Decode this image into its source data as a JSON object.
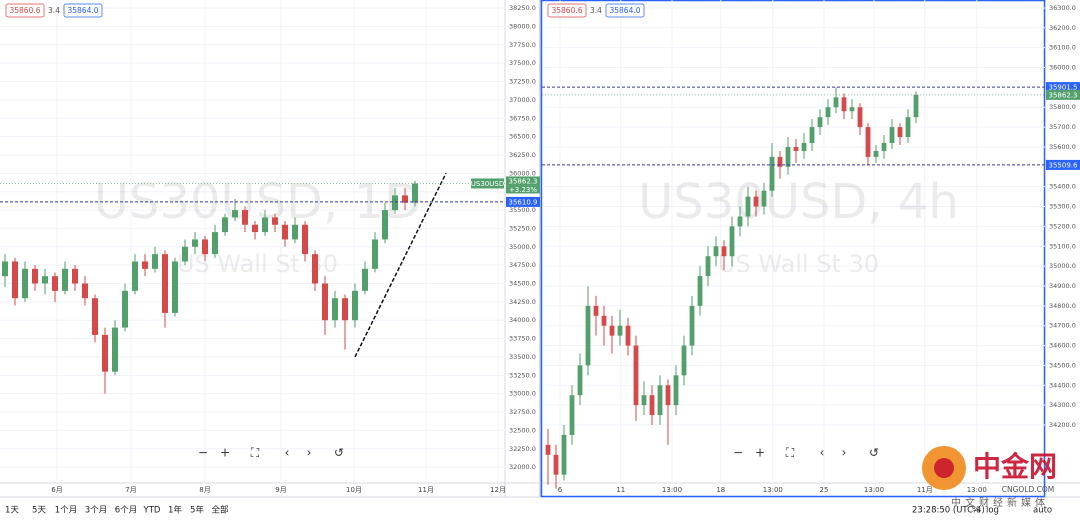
{
  "chart_data": [
    {
      "type": "candlestick",
      "title": "US30USD, 1D",
      "subtitle": "US Wall St 30",
      "header_values": [
        "35860.6",
        "3.4",
        "35864.0"
      ],
      "symbol_label": "US30USD",
      "last_price": 35862.3,
      "change_label": "+3.23%",
      "up_color": "#53a06c",
      "down_color": "#d44a4a",
      "ylim": [
        31784,
        38360
      ],
      "xlim": [
        -0.5,
        50
      ],
      "yticks": [
        {
          "value": 32000,
          "label": "32000.0"
        },
        {
          "value": 32250,
          "label": "32250.0"
        },
        {
          "value": 32500,
          "label": "32500.0"
        },
        {
          "value": 32750,
          "label": "32750.0"
        },
        {
          "value": 33000,
          "label": "33000.0"
        },
        {
          "value": 33250,
          "label": "33250.0"
        },
        {
          "value": 33500,
          "label": "33500.0"
        },
        {
          "value": 33750,
          "label": "33750.0"
        },
        {
          "value": 34000,
          "label": "34000.0"
        },
        {
          "value": 34250,
          "label": "34250.0"
        },
        {
          "value": 34500,
          "label": "34500.0"
        },
        {
          "value": 34750,
          "label": "34750.0"
        },
        {
          "value": 35000,
          "label": "35000.0"
        },
        {
          "value": 35250,
          "label": "35250.0"
        },
        {
          "value": 35500,
          "label": "35500.0"
        },
        {
          "value": 35750,
          "label": "35750.0"
        },
        {
          "value": 36000,
          "label": "36000.0"
        },
        {
          "value": 36250,
          "label": "36250.0"
        },
        {
          "value": 36500,
          "label": "36500.0"
        },
        {
          "value": 36750,
          "label": "36750.0"
        },
        {
          "value": 37000,
          "label": "37000.0"
        },
        {
          "value": 37250,
          "label": "37250.0"
        },
        {
          "value": 37500,
          "label": "37500.0"
        },
        {
          "value": 37750,
          "label": "37750.0"
        },
        {
          "value": 38000,
          "label": "38000.0"
        },
        {
          "value": 38250,
          "label": "38250.0"
        }
      ],
      "xticks": [
        {
          "value": 5.2,
          "label": "6月"
        },
        {
          "value": 12.6,
          "label": "7月"
        },
        {
          "value": 20,
          "label": "8月"
        },
        {
          "value": 27.6,
          "label": "9月"
        },
        {
          "value": 34.9,
          "label": "10月"
        },
        {
          "value": 42.1,
          "label": "11月"
        },
        {
          "value": 49.3,
          "label": "12月"
        }
      ],
      "levels": [
        {
          "value": 35610.9,
          "color": "#2962ff"
        }
      ],
      "trendline": {
        "start": [
          35,
          33500
        ],
        "end": [
          44.1,
          36000
        ]
      },
      "ohlc": [
        [
          34600,
          34900,
          34450,
          34800
        ],
        [
          34800,
          34850,
          34200,
          34300
        ],
        [
          34300,
          34800,
          34250,
          34700
        ],
        [
          34700,
          34750,
          34400,
          34500
        ],
        [
          34500,
          34700,
          34350,
          34600
        ],
        [
          34600,
          34650,
          34250,
          34400
        ],
        [
          34400,
          34800,
          34350,
          34700
        ],
        [
          34700,
          34750,
          34400,
          34500
        ],
        [
          34500,
          34600,
          34200,
          34300
        ],
        [
          34300,
          34350,
          33700,
          33800
        ],
        [
          33800,
          33900,
          33000,
          33300
        ],
        [
          33300,
          34000,
          33250,
          33900
        ],
        [
          33900,
          34500,
          33850,
          34400
        ],
        [
          34400,
          34900,
          34350,
          34800
        ],
        [
          34800,
          34900,
          34600,
          34700
        ],
        [
          34700,
          35000,
          34650,
          34900
        ],
        [
          34900,
          34950,
          33900,
          34100
        ],
        [
          34100,
          34850,
          34050,
          34800
        ],
        [
          34800,
          35100,
          34750,
          35000
        ],
        [
          35000,
          35200,
          34900,
          35100
        ],
        [
          35100,
          35150,
          34800,
          34900
        ],
        [
          34900,
          35300,
          34850,
          35200
        ],
        [
          35200,
          35450,
          35150,
          35400
        ],
        [
          35400,
          35650,
          35350,
          35500
        ],
        [
          35500,
          35550,
          35200,
          35300
        ],
        [
          35300,
          35350,
          35100,
          35200
        ],
        [
          35200,
          35500,
          35150,
          35400
        ],
        [
          35400,
          35450,
          35200,
          35300
        ],
        [
          35300,
          35350,
          35000,
          35100
        ],
        [
          35100,
          35400,
          35050,
          35300
        ],
        [
          35300,
          35350,
          34800,
          34900
        ],
        [
          34900,
          34950,
          34400,
          34500
        ],
        [
          34500,
          34600,
          33800,
          34000
        ],
        [
          34000,
          34400,
          33900,
          34300
        ],
        [
          34300,
          34350,
          33600,
          34000
        ],
        [
          34000,
          34500,
          33900,
          34400
        ],
        [
          34400,
          34800,
          34350,
          34700
        ],
        [
          34700,
          35200,
          34650,
          35100
        ],
        [
          35100,
          35600,
          35050,
          35500
        ],
        [
          35500,
          35800,
          35450,
          35700
        ],
        [
          35700,
          35800,
          35500,
          35600
        ],
        [
          35600,
          35900,
          35550,
          35862.3
        ]
      ]
    },
    {
      "type": "candlestick",
      "title": "US30USD, 4h",
      "subtitle": "US Wall St 30",
      "header_values": [
        "35860.6",
        "3.4",
        "35864.0"
      ],
      "last_price": 35862.3,
      "up_color": "#53a06c",
      "down_color": "#d44a4a",
      "ylim": [
        33908,
        36340
      ],
      "xlim": [
        -0.75,
        62.125
      ],
      "yticks": [
        {
          "value": 34200,
          "label": "34200.0"
        },
        {
          "value": 34300,
          "label": "34300.0"
        },
        {
          "value": 34400,
          "label": "34400.0"
        },
        {
          "value": 34500,
          "label": "34500.0"
        },
        {
          "value": 34600,
          "label": "34600.0"
        },
        {
          "value": 34700,
          "label": "34700.0"
        },
        {
          "value": 34800,
          "label": "34800.0"
        },
        {
          "value": 34900,
          "label": "34900.0"
        },
        {
          "value": 35000,
          "label": "35000.0"
        },
        {
          "value": 35100,
          "label": "35100.0"
        },
        {
          "value": 35200,
          "label": "35200.0"
        },
        {
          "value": 35300,
          "label": "35300.0"
        },
        {
          "value": 35400,
          "label": "35400.0"
        },
        {
          "value": 35600,
          "label": "35600.0"
        },
        {
          "value": 35700,
          "label": "35700.0"
        },
        {
          "value": 35800,
          "label": "35800.0"
        },
        {
          "value": 36000,
          "label": "36000.0"
        },
        {
          "value": 36100,
          "label": "36100.0"
        },
        {
          "value": 36200,
          "label": "36200.0"
        },
        {
          "value": 36300,
          "label": "36300.0"
        }
      ],
      "xticks": [
        {
          "value": 1.5,
          "label": "6"
        },
        {
          "value": 9.1,
          "label": "11"
        },
        {
          "value": 15.5,
          "label": "13:00"
        },
        {
          "value": 21.6,
          "label": "18"
        },
        {
          "value": 28.1,
          "label": "13:00"
        },
        {
          "value": 34.5,
          "label": "25"
        },
        {
          "value": 40.75,
          "label": "13:00"
        },
        {
          "value": 47.1,
          "label": "11月"
        },
        {
          "value": 53.6,
          "label": "13:00"
        }
      ],
      "levels": [
        {
          "value": 35901.5,
          "color": "#2962ff"
        },
        {
          "value": 35509.6,
          "color": "#2962ff"
        }
      ],
      "ohlc": [
        [
          34100,
          34180,
          33900,
          34050
        ],
        [
          34050,
          34100,
          33880,
          33950
        ],
        [
          33950,
          34200,
          33920,
          34150
        ],
        [
          34150,
          34400,
          34100,
          34350
        ],
        [
          34350,
          34560,
          34300,
          34500
        ],
        [
          34500,
          34900,
          34450,
          34800
        ],
        [
          34800,
          34850,
          34650,
          34750
        ],
        [
          34750,
          34800,
          34600,
          34700
        ],
        [
          34700,
          34750,
          34560,
          34650
        ],
        [
          34650,
          34780,
          34600,
          34700
        ],
        [
          34700,
          34740,
          34550,
          34600
        ],
        [
          34600,
          34650,
          34220,
          34300
        ],
        [
          34300,
          34420,
          34250,
          34350
        ],
        [
          34350,
          34400,
          34200,
          34250
        ],
        [
          34250,
          34450,
          34200,
          34400
        ],
        [
          34400,
          34430,
          34100,
          34300
        ],
        [
          34300,
          34500,
          34250,
          34450
        ],
        [
          34450,
          34650,
          34400,
          34600
        ],
        [
          34600,
          34850,
          34550,
          34800
        ],
        [
          34800,
          35000,
          34750,
          34950
        ],
        [
          34950,
          35100,
          34900,
          35050
        ],
        [
          35050,
          35150,
          35000,
          35100
        ],
        [
          35100,
          35130,
          34980,
          35050
        ],
        [
          35050,
          35250,
          35000,
          35200
        ],
        [
          35200,
          35300,
          35150,
          35250
        ],
        [
          35250,
          35400,
          35200,
          35350
        ],
        [
          35350,
          35380,
          35250,
          35300
        ],
        [
          35300,
          35420,
          35260,
          35380
        ],
        [
          35380,
          35620,
          35350,
          35550
        ],
        [
          35550,
          35580,
          35440,
          35500
        ],
        [
          35500,
          35650,
          35460,
          35600
        ],
        [
          35600,
          35640,
          35520,
          35580
        ],
        [
          35580,
          35670,
          35540,
          35620
        ],
        [
          35620,
          35740,
          35580,
          35700
        ],
        [
          35700,
          35790,
          35660,
          35750
        ],
        [
          35750,
          35840,
          35710,
          35800
        ],
        [
          35800,
          35901.5,
          35770,
          35850
        ],
        [
          35850,
          35870,
          35740,
          35780
        ],
        [
          35780,
          35840,
          35740,
          35800
        ],
        [
          35800,
          35820,
          35660,
          35700
        ],
        [
          35700,
          35720,
          35509.6,
          35550
        ],
        [
          35550,
          35610,
          35520,
          35580
        ],
        [
          35580,
          35660,
          35540,
          35620
        ],
        [
          35620,
          35740,
          35590,
          35700
        ],
        [
          35700,
          35720,
          35610,
          35650
        ],
        [
          35650,
          35790,
          35620,
          35750
        ],
        [
          35750,
          35880,
          35720,
          35862.3
        ]
      ]
    }
  ],
  "ui": {
    "nav_buttons": [
      "−",
      "+",
      "⛶",
      "‹",
      "›",
      "↺"
    ],
    "ranges": [
      "1天",
      "5天",
      "1个月",
      "3个月",
      "6个月",
      "YTD",
      "1年",
      "5年",
      "全部"
    ],
    "clock": "23:28:50 (UTC-4)",
    "percent": "%",
    "log": "log",
    "auto": "auto",
    "logo": {
      "name": "中金网",
      "tagline": "中文财经新媒体",
      "site": "CNGOLD.COM"
    }
  }
}
